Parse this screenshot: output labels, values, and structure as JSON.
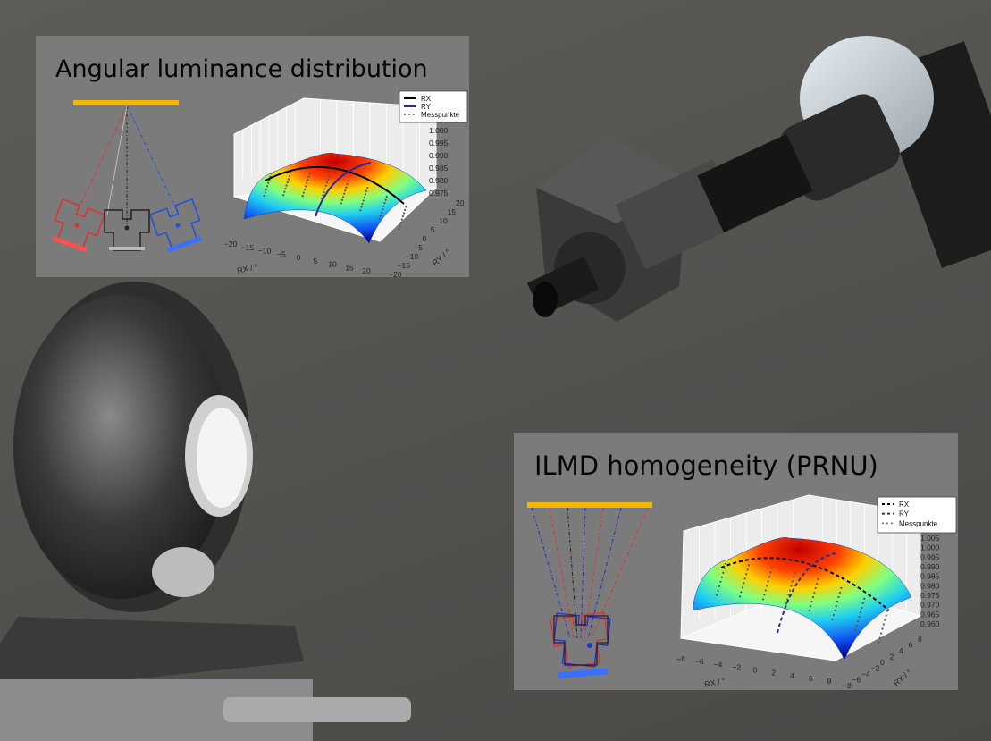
{
  "panels": [
    {
      "title": "Angular luminance distribution",
      "diagram_colors": {
        "source": "#f5b800",
        "left": "#e03030",
        "center": "#222222",
        "right": "#2050e0"
      }
    },
    {
      "title": "ILMD homogeneity (PRNU)",
      "diagram_colors": {
        "source": "#f5b800",
        "left": "#e03030",
        "center": "#222222",
        "right": "#2030d0"
      }
    }
  ],
  "chart_data": [
    {
      "type": "surface",
      "xlabel": "RX / °",
      "ylabel": "RY / °",
      "x_ticks": [
        "−20",
        "−15",
        "−10",
        "−5",
        "0",
        "5",
        "10",
        "15",
        "20"
      ],
      "y_ticks": [
        "−20",
        "−15",
        "−10",
        "−5",
        "0",
        "5",
        "10",
        "15",
        "20"
      ],
      "z_ticks": [
        "0.975",
        "0.980",
        "0.985",
        "0.990",
        "0.995",
        "1.000"
      ],
      "xlim": [
        -20,
        20
      ],
      "ylim": [
        -20,
        20
      ],
      "zlim": [
        0.975,
        1.0
      ],
      "legend": [
        {
          "label": "RX",
          "color": "#000000",
          "style": "solid"
        },
        {
          "label": "RY",
          "color": "#2a2a9a",
          "style": "solid"
        },
        {
          "label": "Messpunkte",
          "color": "#666666",
          "style": "dots"
        }
      ],
      "legend_position": "top-right",
      "colormap": "jet",
      "grid": true
    },
    {
      "type": "surface",
      "xlabel": "RX / °",
      "ylabel": "RY / °",
      "x_ticks": [
        "−8",
        "−6",
        "−4",
        "−2",
        "0",
        "2",
        "4",
        "6",
        "8"
      ],
      "y_ticks": [
        "−8",
        "−6",
        "−4",
        "−2",
        "0",
        "2",
        "4",
        "6",
        "8"
      ],
      "z_ticks": [
        "0.960",
        "0.965",
        "0.970",
        "0.975",
        "0.980",
        "0.985",
        "0.990",
        "0.995",
        "1.000",
        "1.005"
      ],
      "xlim": [
        -8,
        8
      ],
      "ylim": [
        -8,
        8
      ],
      "zlim": [
        0.96,
        1.005
      ],
      "legend": [
        {
          "label": "RX",
          "color": "#000000",
          "style": "dashed"
        },
        {
          "label": "RY",
          "color": "#2a2a9a",
          "style": "dashed"
        },
        {
          "label": "Messpunkte",
          "color": "#666666",
          "style": "dots"
        }
      ],
      "legend_position": "top-right",
      "colormap": "jet",
      "grid": true
    }
  ]
}
